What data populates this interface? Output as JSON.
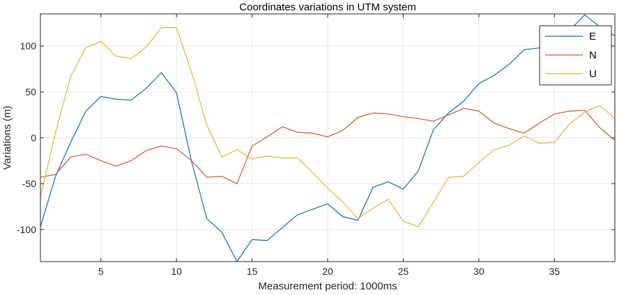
{
  "chart_data": {
    "type": "line",
    "title": "Coordinates variations in UTM system",
    "xlabel": "Measurement period: 1000ms",
    "ylabel": "Variations (m)",
    "xlim": [
      1,
      39
    ],
    "ylim": [
      -135,
      135
    ],
    "xticks": [
      5,
      10,
      15,
      20,
      25,
      30,
      35
    ],
    "yticks": [
      -100,
      -50,
      0,
      50,
      100
    ],
    "grid": true,
    "legend_position": "top-right",
    "x": [
      1,
      2,
      3,
      4,
      5,
      6,
      7,
      8,
      9,
      10,
      11,
      12,
      13,
      14,
      15,
      16,
      17,
      18,
      19,
      20,
      21,
      22,
      23,
      24,
      25,
      26,
      27,
      28,
      29,
      30,
      31,
      32,
      33,
      34,
      35,
      36,
      37,
      38,
      39
    ],
    "series": [
      {
        "name": "E",
        "color": "#0072bd",
        "values": [
          -97,
          -42,
          -5,
          29,
          45,
          42,
          41,
          54,
          71,
          49,
          -26,
          -88,
          -103,
          -135,
          -111,
          -112,
          -98,
          -84,
          -78,
          -72,
          -86,
          -90,
          -54,
          -48,
          -56,
          -36,
          9,
          27,
          40,
          59,
          68,
          80,
          96,
          98,
          102,
          117,
          134,
          121,
          111
        ]
      },
      {
        "name": "N",
        "color": "#d95319",
        "values": [
          -43,
          -40,
          -21,
          -18,
          -25,
          -31,
          -25,
          -14,
          -9,
          -12,
          -25,
          -43,
          -42,
          -50,
          -9,
          1,
          12,
          6,
          5,
          1,
          8,
          22,
          27,
          26,
          23,
          21,
          18,
          25,
          32,
          29,
          16,
          10,
          5,
          16,
          26,
          29,
          30,
          11,
          -3
        ]
      },
      {
        "name": "U",
        "color": "#edb120",
        "values": [
          -65,
          6,
          67,
          98,
          105,
          89,
          86,
          99,
          120,
          120,
          71,
          14,
          -21,
          -13,
          -23,
          -20,
          -22,
          -22,
          -38,
          -55,
          -70,
          -88,
          -77,
          -67,
          -91,
          -97,
          -70,
          -43,
          -42,
          -27,
          -13,
          -8,
          2,
          -6,
          -5,
          15,
          28,
          35,
          21
        ]
      }
    ]
  }
}
